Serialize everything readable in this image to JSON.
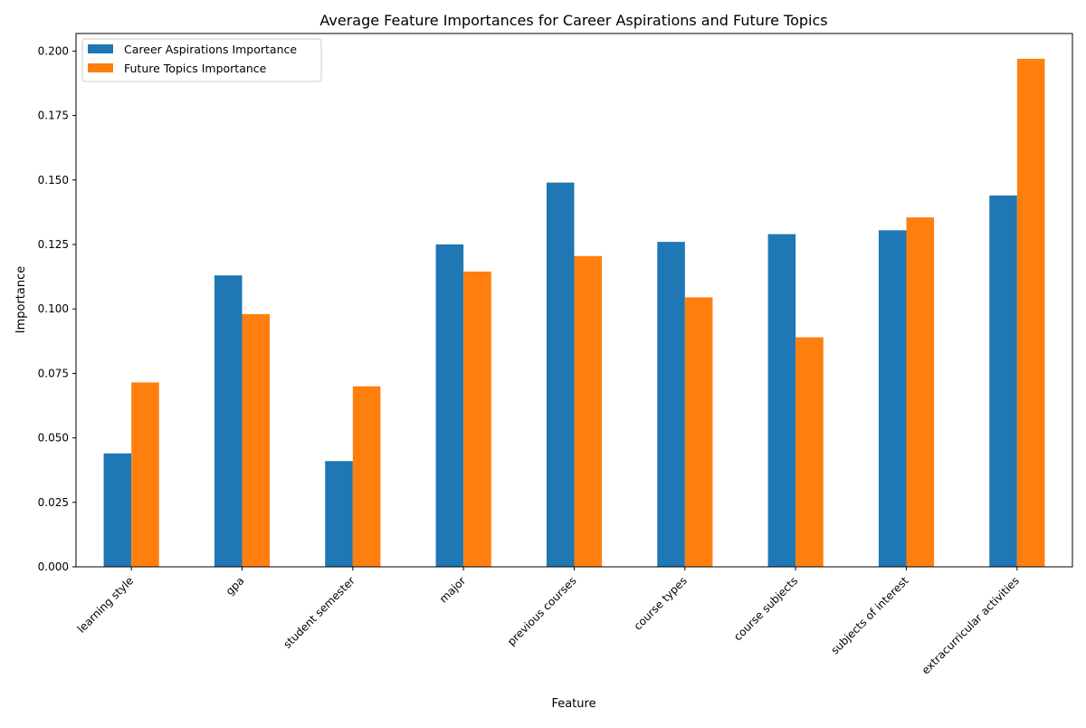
{
  "chart_data": {
    "type": "bar",
    "title": "Average Feature Importances for Career Aspirations and Future Topics",
    "xlabel": "Feature",
    "ylabel": "Importance",
    "categories": [
      "learning style",
      "gpa",
      "student semester",
      "major",
      "previous courses",
      "course types",
      "course subjects",
      "subjects of interest",
      "extracurricular activities"
    ],
    "series": [
      {
        "name": "Career Aspirations Importance",
        "color": "#1f77b4",
        "values": [
          0.044,
          0.113,
          0.041,
          0.125,
          0.149,
          0.126,
          0.129,
          0.1305,
          0.144
        ]
      },
      {
        "name": "Future Topics Importance",
        "color": "#ff7f0e",
        "values": [
          0.0715,
          0.098,
          0.07,
          0.1145,
          0.1205,
          0.1045,
          0.089,
          0.1355,
          0.197
        ]
      }
    ],
    "ylim": [
      0,
      0.2068
    ],
    "yticks": [
      "0.000",
      "0.025",
      "0.050",
      "0.075",
      "0.100",
      "0.125",
      "0.150",
      "0.175",
      "0.200"
    ],
    "grid": false,
    "legend_position": "top-left"
  }
}
